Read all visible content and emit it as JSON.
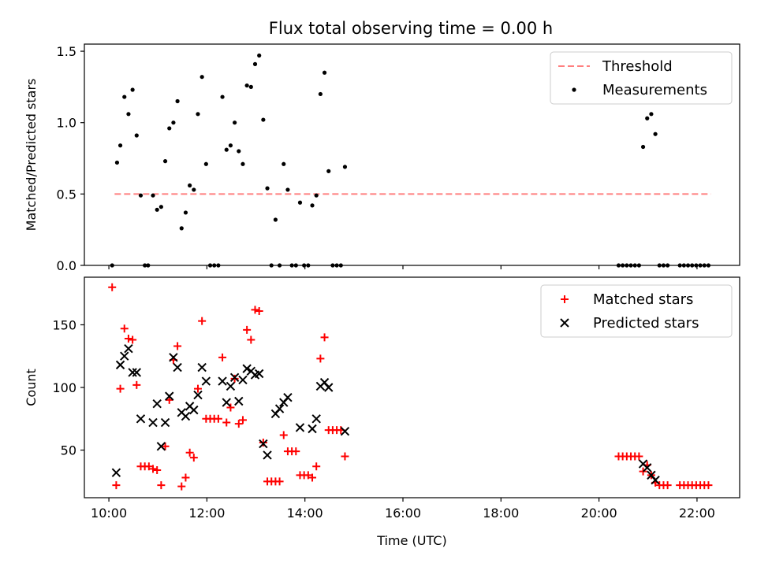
{
  "figure": {
    "title": "Flux total observing time = 0.00 h"
  },
  "chart_data": [
    {
      "type": "scatter",
      "xlabel": "",
      "ylabel": "Matched/Predicted stars",
      "xlim": [
        9.5,
        22.87
      ],
      "ylim": [
        0,
        1.55
      ],
      "yticks": [
        0.0,
        0.5,
        1.0,
        1.5
      ],
      "ytick_labels": [
        "0.0",
        "0.5",
        "1.0",
        "1.5"
      ],
      "legend_position": "upper right",
      "grid": false,
      "legend": [
        {
          "label": "Threshold",
          "color": "#ff7f7f",
          "style": "dashed-line"
        },
        {
          "label": "Measurements",
          "color": "#000000",
          "style": "dot"
        }
      ],
      "threshold": {
        "value": 0.5,
        "x_start": "10:07",
        "x_end": "22:17"
      },
      "series": [
        {
          "name": "Measurements",
          "points": [
            [
              "10:04",
              0.0
            ],
            [
              "10:10",
              0.72
            ],
            [
              "10:14",
              0.84
            ],
            [
              "10:19",
              1.18
            ],
            [
              "10:24",
              1.06
            ],
            [
              "10:29",
              1.23
            ],
            [
              "10:34",
              0.91
            ],
            [
              "10:39",
              0.49
            ],
            [
              "10:44",
              0.0
            ],
            [
              "10:48",
              0.0
            ],
            [
              "10:54",
              0.49
            ],
            [
              "10:59",
              0.39
            ],
            [
              "11:04",
              0.41
            ],
            [
              "11:09",
              0.73
            ],
            [
              "11:14",
              0.96
            ],
            [
              "11:19",
              1.0
            ],
            [
              "11:24",
              1.15
            ],
            [
              "11:29",
              0.26
            ],
            [
              "11:34",
              0.37
            ],
            [
              "11:39",
              0.56
            ],
            [
              "11:44",
              0.53
            ],
            [
              "11:49",
              1.06
            ],
            [
              "11:54",
              1.32
            ],
            [
              "11:59",
              0.71
            ],
            [
              "12:04",
              0.0
            ],
            [
              "12:09",
              0.0
            ],
            [
              "12:14",
              0.0
            ],
            [
              "12:19",
              1.18
            ],
            [
              "12:24",
              0.81
            ],
            [
              "12:29",
              0.84
            ],
            [
              "12:34",
              1.0
            ],
            [
              "12:39",
              0.8
            ],
            [
              "12:44",
              0.71
            ],
            [
              "12:49",
              1.26
            ],
            [
              "12:54",
              1.25
            ],
            [
              "12:59",
              1.41
            ],
            [
              "13:04",
              1.47
            ],
            [
              "13:09",
              1.02
            ],
            [
              "13:14",
              0.54
            ],
            [
              "13:19",
              0.0
            ],
            [
              "13:24",
              0.32
            ],
            [
              "13:29",
              0.0
            ],
            [
              "13:34",
              0.71
            ],
            [
              "13:39",
              0.53
            ],
            [
              "13:44",
              0.0
            ],
            [
              "13:49",
              0.0
            ],
            [
              "13:54",
              0.44
            ],
            [
              "13:59",
              0.0
            ],
            [
              "14:04",
              0.0
            ],
            [
              "14:09",
              0.42
            ],
            [
              "14:14",
              0.49
            ],
            [
              "14:19",
              1.2
            ],
            [
              "14:24",
              1.35
            ],
            [
              "14:29",
              0.66
            ],
            [
              "14:34",
              0.0
            ],
            [
              "14:39",
              0.0
            ],
            [
              "14:44",
              0.0
            ],
            [
              "14:49",
              0.69
            ],
            [
              "20:24",
              0.0
            ],
            [
              "20:29",
              0.0
            ],
            [
              "20:34",
              0.0
            ],
            [
              "20:39",
              0.0
            ],
            [
              "20:44",
              0.0
            ],
            [
              "20:49",
              0.0
            ],
            [
              "20:54",
              0.83
            ],
            [
              "20:59",
              1.03
            ],
            [
              "21:04",
              1.06
            ],
            [
              "21:09",
              0.92
            ],
            [
              "21:14",
              0.0
            ],
            [
              "21:19",
              0.0
            ],
            [
              "21:24",
              0.0
            ],
            [
              "21:39",
              0.0
            ],
            [
              "21:44",
              0.0
            ],
            [
              "21:49",
              0.0
            ],
            [
              "21:54",
              0.0
            ],
            [
              "21:59",
              0.0
            ],
            [
              "22:04",
              0.0
            ],
            [
              "22:09",
              0.0
            ],
            [
              "22:14",
              0.0
            ]
          ]
        }
      ]
    },
    {
      "type": "scatter",
      "xlabel": "Time (UTC)",
      "ylabel": "Count",
      "xlim": [
        9.5,
        22.87
      ],
      "ylim": [
        12,
        188
      ],
      "xticks": [
        "10:00",
        "12:00",
        "14:00",
        "16:00",
        "18:00",
        "20:00",
        "22:00"
      ],
      "yticks": [
        50,
        100,
        150
      ],
      "ytick_labels": [
        "50",
        "100",
        "150"
      ],
      "legend_position": "upper right",
      "grid": false,
      "legend": [
        {
          "label": "Matched stars",
          "color": "#ff0000",
          "style": "plus"
        },
        {
          "label": "Predicted stars",
          "color": "#000000",
          "style": "cross"
        }
      ],
      "series": [
        {
          "name": "Matched stars",
          "points": [
            [
              "10:04",
              180
            ],
            [
              "10:09",
              22
            ],
            [
              "10:14",
              99
            ],
            [
              "10:19",
              147
            ],
            [
              "10:24",
              139
            ],
            [
              "10:29",
              138
            ],
            [
              "10:34",
              102
            ],
            [
              "10:39",
              37
            ],
            [
              "10:44",
              37
            ],
            [
              "10:49",
              37
            ],
            [
              "10:54",
              35
            ],
            [
              "10:59",
              34
            ],
            [
              "11:04",
              22
            ],
            [
              "11:09",
              53
            ],
            [
              "11:14",
              90
            ],
            [
              "11:19",
              122
            ],
            [
              "11:24",
              133
            ],
            [
              "11:29",
              21
            ],
            [
              "11:34",
              28
            ],
            [
              "11:39",
              48
            ],
            [
              "11:44",
              44
            ],
            [
              "11:49",
              99
            ],
            [
              "11:54",
              153
            ],
            [
              "11:59",
              75
            ],
            [
              "12:04",
              75
            ],
            [
              "12:09",
              75
            ],
            [
              "12:14",
              75
            ],
            [
              "12:19",
              124
            ],
            [
              "12:24",
              72
            ],
            [
              "12:29",
              84
            ],
            [
              "12:34",
              107
            ],
            [
              "12:39",
              71
            ],
            [
              "12:44",
              74
            ],
            [
              "12:49",
              146
            ],
            [
              "12:54",
              138
            ],
            [
              "12:59",
              162
            ],
            [
              "13:04",
              161
            ],
            [
              "13:09",
              56
            ],
            [
              "13:14",
              25
            ],
            [
              "13:19",
              25
            ],
            [
              "13:24",
              25
            ],
            [
              "13:29",
              25
            ],
            [
              "13:34",
              62
            ],
            [
              "13:39",
              49
            ],
            [
              "13:44",
              49
            ],
            [
              "13:49",
              49
            ],
            [
              "13:54",
              30
            ],
            [
              "13:59",
              30
            ],
            [
              "14:04",
              30
            ],
            [
              "14:09",
              28
            ],
            [
              "14:14",
              37
            ],
            [
              "14:19",
              123
            ],
            [
              "14:24",
              140
            ],
            [
              "14:29",
              66
            ],
            [
              "14:34",
              66
            ],
            [
              "14:39",
              66
            ],
            [
              "14:44",
              66
            ],
            [
              "14:49",
              45
            ],
            [
              "20:24",
              45
            ],
            [
              "20:29",
              45
            ],
            [
              "20:34",
              45
            ],
            [
              "20:39",
              45
            ],
            [
              "20:44",
              45
            ],
            [
              "20:49",
              45
            ],
            [
              "20:54",
              33
            ],
            [
              "20:59",
              38
            ],
            [
              "21:04",
              30
            ],
            [
              "21:09",
              24
            ],
            [
              "21:14",
              22
            ],
            [
              "21:19",
              22
            ],
            [
              "21:24",
              22
            ],
            [
              "21:39",
              22
            ],
            [
              "21:44",
              22
            ],
            [
              "21:49",
              22
            ],
            [
              "21:54",
              22
            ],
            [
              "21:59",
              22
            ],
            [
              "22:04",
              22
            ],
            [
              "22:09",
              22
            ],
            [
              "22:14",
              22
            ]
          ]
        },
        {
          "name": "Predicted stars",
          "points": [
            [
              "10:09",
              32
            ],
            [
              "10:14",
              118
            ],
            [
              "10:19",
              125
            ],
            [
              "10:24",
              131
            ],
            [
              "10:29",
              112
            ],
            [
              "10:34",
              112
            ],
            [
              "10:39",
              75
            ],
            [
              "10:54",
              72
            ],
            [
              "10:59",
              87
            ],
            [
              "11:04",
              53
            ],
            [
              "11:09",
              72
            ],
            [
              "11:14",
              93
            ],
            [
              "11:19",
              124
            ],
            [
              "11:24",
              116
            ],
            [
              "11:29",
              80
            ],
            [
              "11:34",
              77
            ],
            [
              "11:39",
              85
            ],
            [
              "11:44",
              82
            ],
            [
              "11:49",
              94
            ],
            [
              "11:54",
              116
            ],
            [
              "11:59",
              105
            ],
            [
              "12:19",
              105
            ],
            [
              "12:24",
              88
            ],
            [
              "12:29",
              101
            ],
            [
              "12:34",
              108
            ],
            [
              "12:39",
              89
            ],
            [
              "12:44",
              106
            ],
            [
              "12:49",
              115
            ],
            [
              "12:54",
              113
            ],
            [
              "12:59",
              110
            ],
            [
              "13:04",
              111
            ],
            [
              "13:09",
              55
            ],
            [
              "13:14",
              46
            ],
            [
              "13:24",
              79
            ],
            [
              "13:29",
              83
            ],
            [
              "13:34",
              88
            ],
            [
              "13:39",
              92
            ],
            [
              "13:54",
              68
            ],
            [
              "14:09",
              67
            ],
            [
              "14:14",
              75
            ],
            [
              "14:19",
              101
            ],
            [
              "14:24",
              104
            ],
            [
              "14:29",
              100
            ],
            [
              "14:49",
              65
            ],
            [
              "20:54",
              39
            ],
            [
              "20:59",
              36
            ],
            [
              "21:04",
              30
            ],
            [
              "21:09",
              26
            ]
          ]
        }
      ]
    }
  ]
}
